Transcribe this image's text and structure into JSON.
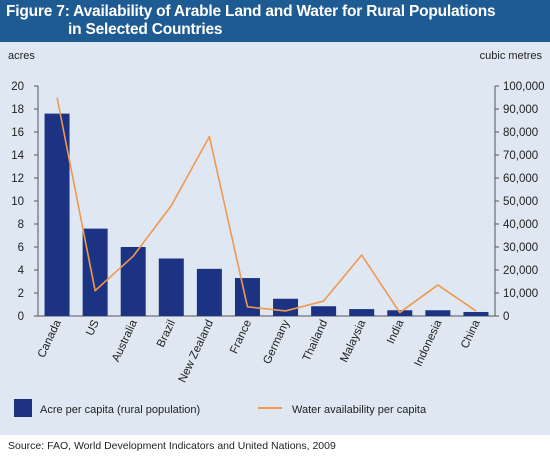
{
  "title": {
    "line1": "Figure 7: Availability of Arable Land and Water for Rural Populations",
    "line2": "in Selected Countries"
  },
  "source": "Source:  FAO, World Development Indicators and United Nations, 2009",
  "colors": {
    "title_band": "#1f5b93",
    "bars": "#1c3383",
    "line": "#f0984f",
    "plot_bg": "#dfe8f2"
  },
  "chart_data": {
    "type": "bar",
    "categories": [
      "Canada",
      "US",
      "Australia",
      "Brazil",
      "New Zealand",
      "France",
      "Germany",
      "Thailand",
      "Malaysia",
      "India",
      "Indonesia",
      "China"
    ],
    "series": [
      {
        "name": "Acre per capita (rural population)",
        "type": "bar",
        "axis": "left",
        "values": [
          17.6,
          7.6,
          6.0,
          5.0,
          4.1,
          3.3,
          1.5,
          0.85,
          0.6,
          0.5,
          0.5,
          0.35
        ]
      },
      {
        "name": "Water availability per capita",
        "type": "line",
        "axis": "right",
        "values": [
          95000,
          11000,
          26000,
          48000,
          78000,
          4000,
          2200,
          6500,
          26500,
          1500,
          13500,
          2200
        ]
      }
    ],
    "ylabel": "acres",
    "ylabel_right": "cubic metres",
    "ylim": [
      0,
      20
    ],
    "yticks": [
      "0",
      "2",
      "4",
      "6",
      "8",
      "10",
      "12",
      "14",
      "16",
      "18",
      "20"
    ],
    "ylim_right": [
      0,
      100000
    ],
    "yticks_right": [
      "0",
      "10,000",
      "20,000",
      "30,000",
      "40,000",
      "50,000",
      "60,000",
      "70,000",
      "80,000",
      "90,000",
      "100,000"
    ],
    "grid": false,
    "legend_position": "bottom"
  }
}
